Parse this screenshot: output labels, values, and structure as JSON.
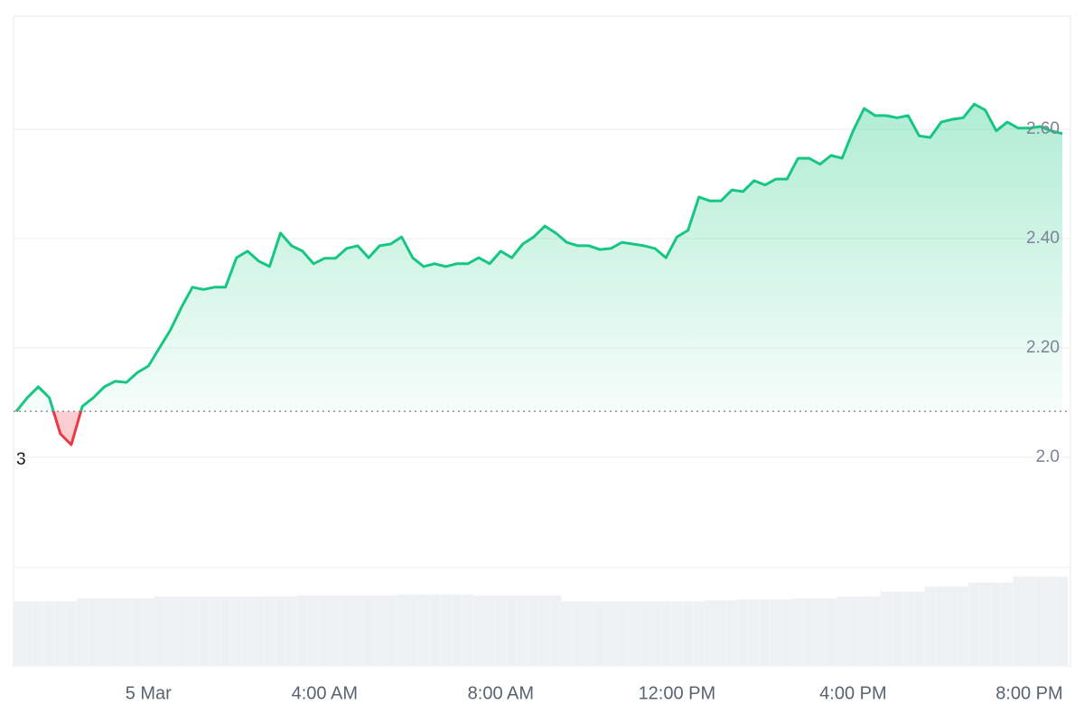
{
  "chart_data": {
    "type": "line",
    "categories": [
      null,
      null,
      null,
      null,
      null,
      null,
      null,
      null,
      null,
      null,
      null,
      null,
      "5 Mar",
      null,
      null,
      null,
      null,
      null,
      null,
      null,
      null,
      null,
      null,
      null,
      null,
      null,
      null,
      null,
      "4:00 AM",
      null,
      null,
      null,
      null,
      null,
      null,
      null,
      null,
      null,
      null,
      null,
      null,
      null,
      null,
      null,
      "8:00 AM",
      null,
      null,
      null,
      null,
      null,
      null,
      null,
      null,
      null,
      null,
      null,
      null,
      null,
      null,
      null,
      "12:00 PM",
      null,
      null,
      null,
      null,
      null,
      null,
      null,
      null,
      null,
      null,
      null,
      null,
      null,
      null,
      null,
      "4:00 PM",
      null,
      null,
      null,
      null,
      null,
      null,
      null,
      null,
      null,
      null,
      null,
      null,
      null,
      null,
      null,
      "8:00 PM",
      null,
      null,
      null
    ],
    "values": [
      2.084,
      2.109,
      2.129,
      2.109,
      2.043,
      2.023,
      2.093,
      2.109,
      2.129,
      2.139,
      2.137,
      2.155,
      2.167,
      2.2,
      2.233,
      2.274,
      2.311,
      2.307,
      2.311,
      2.311,
      2.365,
      2.377,
      2.359,
      2.349,
      2.41,
      2.387,
      2.377,
      2.354,
      2.364,
      2.364,
      2.382,
      2.387,
      2.365,
      2.387,
      2.39,
      2.403,
      2.365,
      2.349,
      2.354,
      2.349,
      2.354,
      2.354,
      2.365,
      2.354,
      2.377,
      2.365,
      2.39,
      2.403,
      2.423,
      2.41,
      2.393,
      2.387,
      2.387,
      2.38,
      2.382,
      2.393,
      2.39,
      2.387,
      2.382,
      2.365,
      2.403,
      2.415,
      2.476,
      2.469,
      2.469,
      2.489,
      2.486,
      2.506,
      2.498,
      2.509,
      2.509,
      2.547,
      2.547,
      2.536,
      2.552,
      2.547,
      2.597,
      2.638,
      2.625,
      2.625,
      2.621,
      2.625,
      2.588,
      2.585,
      2.613,
      2.618,
      2.621,
      2.646,
      2.635,
      2.597,
      2.613,
      2.602,
      2.602,
      2.605,
      2.597,
      2.592
    ],
    "volume": [
      65,
      65,
      65,
      65,
      65,
      65,
      68,
      68,
      68,
      68,
      68,
      68,
      68,
      70,
      70,
      70,
      70,
      70,
      70,
      70,
      70,
      70,
      70,
      70,
      70,
      70,
      71,
      71,
      71,
      71,
      71,
      71,
      71,
      71,
      71,
      72,
      72,
      72,
      72,
      72,
      72,
      72,
      71,
      71,
      71,
      71,
      71,
      71,
      71,
      71,
      65,
      65,
      65,
      65,
      65,
      65,
      65,
      65,
      65,
      65,
      65,
      65,
      65,
      66,
      66,
      66,
      67,
      67,
      67,
      67,
      67,
      68,
      68,
      68,
      68,
      70,
      70,
      70,
      70,
      75,
      75,
      75,
      75,
      80,
      80,
      80,
      80,
      84,
      84,
      84,
      84,
      90,
      90,
      90,
      90,
      90
    ],
    "vlim": [
      0,
      100
    ],
    "baseline": 2.084,
    "up_color": "#16c784",
    "down_color": "#ea3943",
    "ylim": [
      1.8,
      2.8
    ],
    "yticks": [
      {
        "value": 2,
        "label": "2.0"
      },
      {
        "value": 2.2,
        "label": "2.20"
      },
      {
        "value": 2.4,
        "label": "2.40"
      },
      {
        "value": 2.6,
        "label": "2.60"
      }
    ],
    "grid": true,
    "annotations": [
      "3"
    ]
  }
}
